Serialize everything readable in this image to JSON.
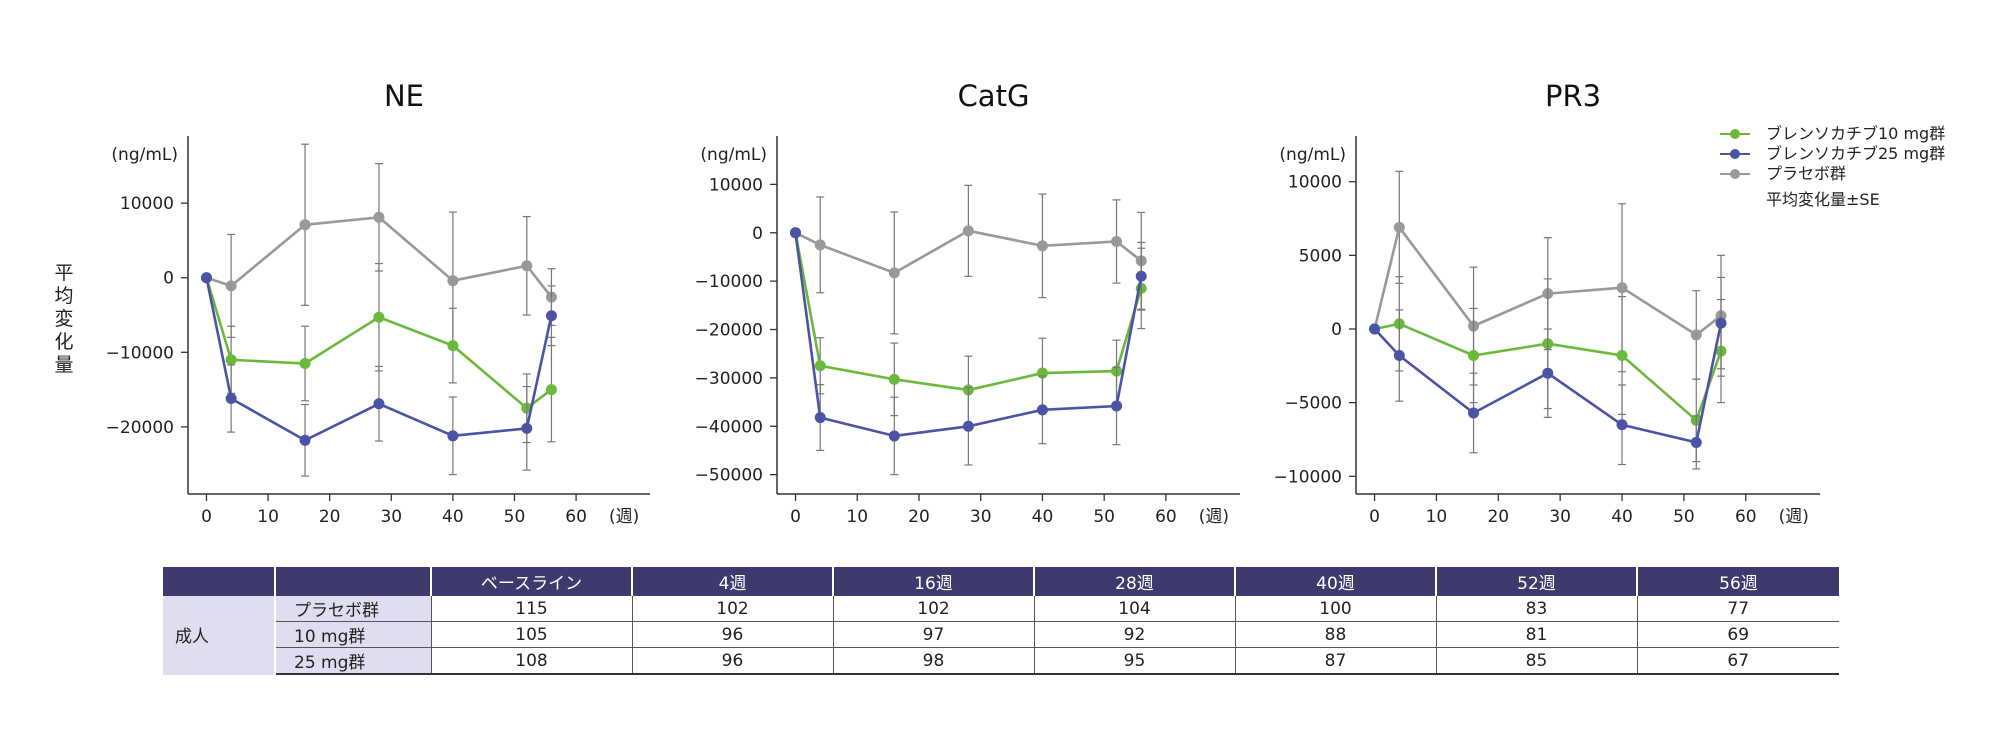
{
  "y_title": [
    "平",
    "均",
    "変",
    "化",
    "量"
  ],
  "legend": {
    "items": [
      {
        "label": "ブレンソカチブ10 mg群",
        "color": "#6ab83c"
      },
      {
        "label": "ブレンソカチブ25 mg群",
        "color": "#4b53a5"
      },
      {
        "label": "プラセボ群",
        "color": "#999999"
      }
    ],
    "note": "平均変化量±SE"
  },
  "table": {
    "headers": [
      "",
      "",
      "ベースライン",
      "4週",
      "16週",
      "28週",
      "40週",
      "52週",
      "56週"
    ],
    "group_label": "成人",
    "rows": [
      {
        "label": "プラセボ群",
        "values": [
          "115",
          "102",
          "102",
          "104",
          "100",
          "83",
          "77"
        ]
      },
      {
        "label": "10 mg群",
        "values": [
          "105",
          "96",
          "97",
          "92",
          "88",
          "81",
          "69"
        ]
      },
      {
        "label": "25 mg群",
        "values": [
          "108",
          "96",
          "98",
          "95",
          "87",
          "85",
          "67"
        ]
      }
    ]
  },
  "chart_data": [
    {
      "type": "line",
      "title": "NE",
      "unit_label": "(ng/mL)",
      "xlabel": "(週)",
      "x_ticks": [
        0,
        10,
        20,
        30,
        40,
        50,
        60
      ],
      "y_ticks": [
        10000,
        0,
        -10000,
        -20000
      ],
      "ylim": [
        -29000,
        19000
      ],
      "xlim": [
        -3,
        72
      ],
      "x": [
        0,
        4,
        16,
        28,
        40,
        52,
        56
      ],
      "series": [
        {
          "name": "ブレンソカチブ10 mg群",
          "color": "#6ab83c",
          "values": [
            0,
            -11000,
            -11500,
            -5300,
            -9100,
            -17500,
            -15000
          ],
          "err": [
            0,
            4500,
            5000,
            7200,
            5000,
            4600,
            7000
          ]
        },
        {
          "name": "ブレンソカチブ25 mg群",
          "color": "#4b53a5",
          "values": [
            0,
            -16200,
            -21800,
            -16900,
            -21200,
            -20200,
            -5100
          ],
          "err": [
            0,
            4500,
            4800,
            5000,
            5200,
            5600,
            4000
          ]
        },
        {
          "name": "プラセボ群",
          "color": "#999999",
          "values": [
            0,
            -1100,
            7100,
            8100,
            -400,
            1600,
            -2600
          ],
          "err": [
            0,
            6900,
            10800,
            7200,
            9200,
            6600,
            3800
          ]
        }
      ]
    },
    {
      "type": "line",
      "title": "CatG",
      "unit_label": "(ng/mL)",
      "xlabel": "(週)",
      "x_ticks": [
        0,
        10,
        20,
        30,
        40,
        50,
        60
      ],
      "y_ticks": [
        10000,
        0,
        -10000,
        -20000,
        -30000,
        -40000,
        -50000
      ],
      "ylim": [
        -54000,
        20000
      ],
      "xlim": [
        -3,
        72
      ],
      "x": [
        0,
        4,
        16,
        28,
        40,
        52,
        56
      ],
      "series": [
        {
          "name": "ブレンソカチブ10 mg群",
          "color": "#6ab83c",
          "values": [
            0,
            -27500,
            -30300,
            -32500,
            -29000,
            -28600,
            -11500
          ],
          "err": [
            0,
            5800,
            7500,
            7000,
            7200,
            6400,
            8300
          ]
        },
        {
          "name": "ブレンソカチブ25 mg群",
          "color": "#4b53a5",
          "values": [
            0,
            -38200,
            -42000,
            -40000,
            -36600,
            -35800,
            -9000
          ],
          "err": [
            0,
            6800,
            8000,
            8000,
            7000,
            8000,
            7000
          ]
        },
        {
          "name": "プラセボ群",
          "color": "#999999",
          "values": [
            0,
            -2500,
            -8300,
            400,
            -2700,
            -1800,
            -5800
          ],
          "err": [
            0,
            9900,
            12600,
            9400,
            10700,
            8600,
            10000
          ]
        }
      ]
    },
    {
      "type": "line",
      "title": "PR3",
      "unit_label": "(ng/mL)",
      "xlabel": "(週)",
      "x_ticks": [
        0,
        10,
        20,
        30,
        40,
        50,
        60
      ],
      "y_ticks": [
        10000,
        5000,
        0,
        -5000,
        -10000
      ],
      "ylim": [
        -11200,
        13100
      ],
      "xlim": [
        -3,
        72
      ],
      "x": [
        0,
        4,
        16,
        28,
        40,
        52,
        56
      ],
      "series": [
        {
          "name": "ブレンソカチブ10 mg群",
          "color": "#6ab83c",
          "values": [
            0,
            350,
            -1800,
            -1000,
            -1800,
            -6200,
            -1500
          ],
          "err": [
            0,
            3200,
            3200,
            4400,
            4000,
            2800,
            3500
          ]
        },
        {
          "name": "ブレンソカチブ25 mg群",
          "color": "#4b53a5",
          "values": [
            0,
            -1800,
            -5700,
            -3000,
            -6500,
            -7700,
            400
          ],
          "err": [
            0,
            3100,
            2700,
            3000,
            2700,
            1800,
            3100
          ]
        },
        {
          "name": "プラセボ群",
          "color": "#999999",
          "values": [
            0,
            6900,
            200,
            2400,
            2800,
            -400,
            900
          ],
          "err": [
            0,
            3800,
            4000,
            3800,
            5700,
            3000,
            4100
          ]
        }
      ]
    }
  ]
}
